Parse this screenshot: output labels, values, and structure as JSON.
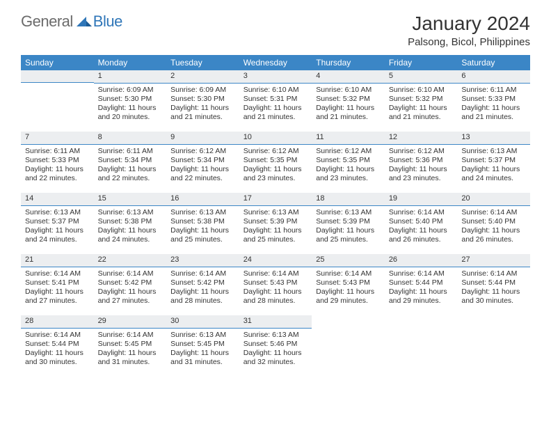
{
  "logo": {
    "part1": "General",
    "part2": "Blue"
  },
  "title": "January 2024",
  "subtitle": "Palsong, Bicol, Philippines",
  "colors": {
    "header_bg": "#3b86c6",
    "header_text": "#ffffff",
    "daynum_bg": "#eceef0",
    "daynum_border": "#3b86c6",
    "text": "#333333",
    "logo_gray": "#6b6b6b",
    "logo_blue": "#2f76b8",
    "page_bg": "#ffffff"
  },
  "weekdays": [
    "Sunday",
    "Monday",
    "Tuesday",
    "Wednesday",
    "Thursday",
    "Friday",
    "Saturday"
  ],
  "first_weekday_index": 1,
  "days": [
    {
      "n": 1,
      "sunrise": "6:09 AM",
      "sunset": "5:30 PM",
      "dl": "11 hours and 20 minutes."
    },
    {
      "n": 2,
      "sunrise": "6:09 AM",
      "sunset": "5:30 PM",
      "dl": "11 hours and 21 minutes."
    },
    {
      "n": 3,
      "sunrise": "6:10 AM",
      "sunset": "5:31 PM",
      "dl": "11 hours and 21 minutes."
    },
    {
      "n": 4,
      "sunrise": "6:10 AM",
      "sunset": "5:32 PM",
      "dl": "11 hours and 21 minutes."
    },
    {
      "n": 5,
      "sunrise": "6:10 AM",
      "sunset": "5:32 PM",
      "dl": "11 hours and 21 minutes."
    },
    {
      "n": 6,
      "sunrise": "6:11 AM",
      "sunset": "5:33 PM",
      "dl": "11 hours and 21 minutes."
    },
    {
      "n": 7,
      "sunrise": "6:11 AM",
      "sunset": "5:33 PM",
      "dl": "11 hours and 22 minutes."
    },
    {
      "n": 8,
      "sunrise": "6:11 AM",
      "sunset": "5:34 PM",
      "dl": "11 hours and 22 minutes."
    },
    {
      "n": 9,
      "sunrise": "6:12 AM",
      "sunset": "5:34 PM",
      "dl": "11 hours and 22 minutes."
    },
    {
      "n": 10,
      "sunrise": "6:12 AM",
      "sunset": "5:35 PM",
      "dl": "11 hours and 23 minutes."
    },
    {
      "n": 11,
      "sunrise": "6:12 AM",
      "sunset": "5:35 PM",
      "dl": "11 hours and 23 minutes."
    },
    {
      "n": 12,
      "sunrise": "6:12 AM",
      "sunset": "5:36 PM",
      "dl": "11 hours and 23 minutes."
    },
    {
      "n": 13,
      "sunrise": "6:13 AM",
      "sunset": "5:37 PM",
      "dl": "11 hours and 24 minutes."
    },
    {
      "n": 14,
      "sunrise": "6:13 AM",
      "sunset": "5:37 PM",
      "dl": "11 hours and 24 minutes."
    },
    {
      "n": 15,
      "sunrise": "6:13 AM",
      "sunset": "5:38 PM",
      "dl": "11 hours and 24 minutes."
    },
    {
      "n": 16,
      "sunrise": "6:13 AM",
      "sunset": "5:38 PM",
      "dl": "11 hours and 25 minutes."
    },
    {
      "n": 17,
      "sunrise": "6:13 AM",
      "sunset": "5:39 PM",
      "dl": "11 hours and 25 minutes."
    },
    {
      "n": 18,
      "sunrise": "6:13 AM",
      "sunset": "5:39 PM",
      "dl": "11 hours and 25 minutes."
    },
    {
      "n": 19,
      "sunrise": "6:14 AM",
      "sunset": "5:40 PM",
      "dl": "11 hours and 26 minutes."
    },
    {
      "n": 20,
      "sunrise": "6:14 AM",
      "sunset": "5:40 PM",
      "dl": "11 hours and 26 minutes."
    },
    {
      "n": 21,
      "sunrise": "6:14 AM",
      "sunset": "5:41 PM",
      "dl": "11 hours and 27 minutes."
    },
    {
      "n": 22,
      "sunrise": "6:14 AM",
      "sunset": "5:42 PM",
      "dl": "11 hours and 27 minutes."
    },
    {
      "n": 23,
      "sunrise": "6:14 AM",
      "sunset": "5:42 PM",
      "dl": "11 hours and 28 minutes."
    },
    {
      "n": 24,
      "sunrise": "6:14 AM",
      "sunset": "5:43 PM",
      "dl": "11 hours and 28 minutes."
    },
    {
      "n": 25,
      "sunrise": "6:14 AM",
      "sunset": "5:43 PM",
      "dl": "11 hours and 29 minutes."
    },
    {
      "n": 26,
      "sunrise": "6:14 AM",
      "sunset": "5:44 PM",
      "dl": "11 hours and 29 minutes."
    },
    {
      "n": 27,
      "sunrise": "6:14 AM",
      "sunset": "5:44 PM",
      "dl": "11 hours and 30 minutes."
    },
    {
      "n": 28,
      "sunrise": "6:14 AM",
      "sunset": "5:44 PM",
      "dl": "11 hours and 30 minutes."
    },
    {
      "n": 29,
      "sunrise": "6:14 AM",
      "sunset": "5:45 PM",
      "dl": "11 hours and 31 minutes."
    },
    {
      "n": 30,
      "sunrise": "6:13 AM",
      "sunset": "5:45 PM",
      "dl": "11 hours and 31 minutes."
    },
    {
      "n": 31,
      "sunrise": "6:13 AM",
      "sunset": "5:46 PM",
      "dl": "11 hours and 32 minutes."
    }
  ],
  "labels": {
    "sunrise": "Sunrise:",
    "sunset": "Sunset:",
    "daylight": "Daylight:"
  }
}
